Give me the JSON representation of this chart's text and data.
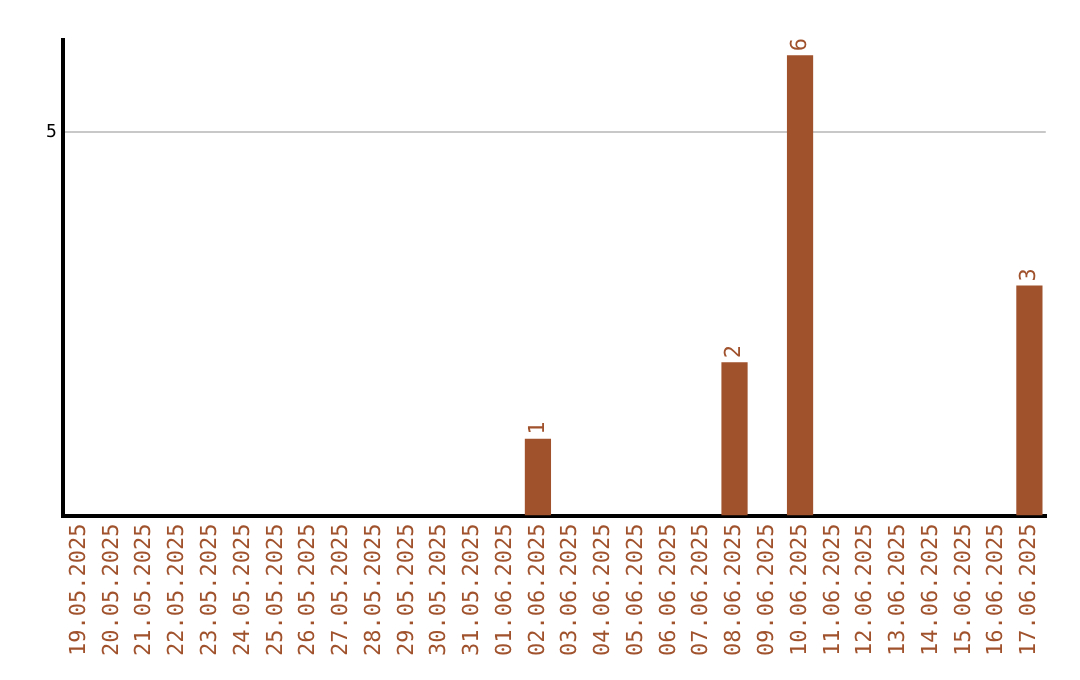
{
  "chart_data": {
    "type": "bar",
    "categories": [
      "19.05.2025",
      "20.05.2025",
      "21.05.2025",
      "22.05.2025",
      "23.05.2025",
      "24.05.2025",
      "25.05.2025",
      "26.05.2025",
      "27.05.2025",
      "28.05.2025",
      "29.05.2025",
      "30.05.2025",
      "31.05.2025",
      "01.06.2025",
      "02.06.2025",
      "03.06.2025",
      "04.06.2025",
      "05.06.2025",
      "06.06.2025",
      "07.06.2025",
      "08.06.2025",
      "09.06.2025",
      "10.06.2025",
      "11.06.2025",
      "12.06.2025",
      "13.06.2025",
      "14.06.2025",
      "15.06.2025",
      "16.06.2025",
      "17.06.2025"
    ],
    "values": [
      null,
      null,
      null,
      null,
      null,
      null,
      null,
      null,
      null,
      null,
      null,
      null,
      null,
      null,
      1,
      null,
      null,
      null,
      null,
      null,
      2,
      null,
      6,
      null,
      null,
      null,
      null,
      null,
      null,
      3
    ],
    "color": "#a0522d",
    "data_labels": true,
    "ylim": [
      0,
      6.2
    ],
    "yticks": [
      5
    ],
    "grid": "y",
    "legend": false
  }
}
